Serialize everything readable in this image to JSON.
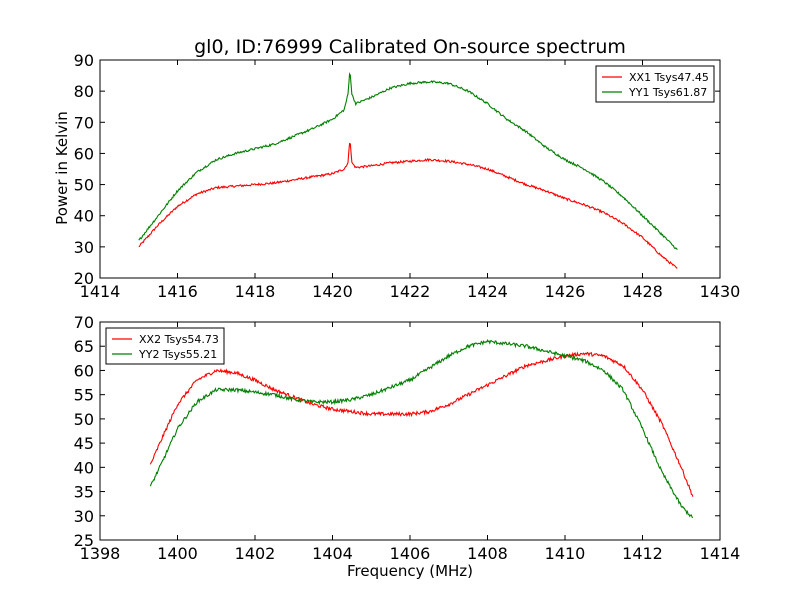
{
  "figure": {
    "title": "gl0, ID:76999 Calibrated On-source spectrum",
    "ylabel": "Power in Kelvin",
    "xlabel": "Frequency (MHz)"
  },
  "chart_data": [
    {
      "type": "line",
      "xlim": [
        1414,
        1430
      ],
      "ylim": [
        20,
        90
      ],
      "xticks": [
        1414,
        1416,
        1418,
        1420,
        1422,
        1424,
        1426,
        1428,
        1430
      ],
      "yticks": [
        20,
        30,
        40,
        50,
        60,
        70,
        80,
        90
      ],
      "legend_position": "top-right",
      "series": [
        {
          "name": "XX1 Tsys47.45",
          "color": "#ff0000",
          "x": [
            1415.0,
            1415.5,
            1416.0,
            1416.5,
            1417.0,
            1417.5,
            1418.0,
            1418.5,
            1419.0,
            1419.5,
            1420.0,
            1420.3,
            1420.4,
            1420.45,
            1420.5,
            1420.6,
            1421.0,
            1421.5,
            1422.0,
            1422.5,
            1423.0,
            1423.5,
            1424.0,
            1424.5,
            1425.0,
            1425.5,
            1426.0,
            1426.5,
            1427.0,
            1427.5,
            1428.0,
            1428.5,
            1428.9
          ],
          "y": [
            30,
            37,
            43,
            47,
            49,
            49.5,
            50,
            50.5,
            51.5,
            52.5,
            53.5,
            55,
            57,
            65,
            57,
            55.5,
            56,
            57,
            57.5,
            58,
            57.5,
            56.5,
            55,
            52.5,
            50,
            48,
            45.5,
            43.5,
            41,
            37.5,
            33,
            27,
            23
          ]
        },
        {
          "name": "YY1 Tsys61.87",
          "color": "#008000",
          "x": [
            1415.0,
            1415.5,
            1416.0,
            1416.5,
            1417.0,
            1417.5,
            1418.0,
            1418.5,
            1419.0,
            1419.5,
            1420.0,
            1420.3,
            1420.4,
            1420.45,
            1420.5,
            1420.6,
            1421.0,
            1421.5,
            1422.0,
            1422.5,
            1423.0,
            1423.5,
            1424.0,
            1424.5,
            1425.0,
            1425.5,
            1426.0,
            1426.5,
            1427.0,
            1427.5,
            1428.0,
            1428.5,
            1428.9
          ],
          "y": [
            32,
            40,
            48,
            54,
            58,
            60,
            61.5,
            63,
            65.5,
            68,
            71,
            74,
            79,
            87,
            79,
            76,
            78,
            81,
            82.5,
            83,
            82.5,
            80,
            76,
            71,
            67,
            62,
            58,
            55,
            51,
            46,
            40,
            34,
            29
          ]
        }
      ]
    },
    {
      "type": "line",
      "xlim": [
        1398,
        1414
      ],
      "ylim": [
        25,
        70
      ],
      "xticks": [
        1398,
        1400,
        1402,
        1404,
        1406,
        1408,
        1410,
        1412,
        1414
      ],
      "yticks": [
        25,
        30,
        35,
        40,
        45,
        50,
        55,
        60,
        65,
        70
      ],
      "legend_position": "top-left",
      "series": [
        {
          "name": "XX2 Tsys54.73",
          "color": "#ff0000",
          "x": [
            1399.3,
            1399.6,
            1400.0,
            1400.5,
            1401.0,
            1401.5,
            1402.0,
            1402.5,
            1403.0,
            1403.5,
            1404.0,
            1404.5,
            1405.0,
            1405.5,
            1406.0,
            1406.5,
            1407.0,
            1407.5,
            1408.0,
            1408.5,
            1409.0,
            1409.5,
            1410.0,
            1410.5,
            1411.0,
            1411.5,
            1412.0,
            1412.5,
            1413.0,
            1413.3
          ],
          "y": [
            40.5,
            46,
            53,
            58,
            60,
            59.5,
            58,
            56,
            54.5,
            53,
            52,
            51.5,
            51,
            51,
            51,
            51.5,
            53,
            55,
            57,
            59,
            61,
            62,
            63,
            63.5,
            63,
            61,
            56,
            49,
            40,
            34
          ]
        },
        {
          "name": "YY2 Tsys55.21",
          "color": "#008000",
          "x": [
            1399.3,
            1399.6,
            1400.0,
            1400.5,
            1401.0,
            1401.5,
            1402.0,
            1402.5,
            1403.0,
            1403.5,
            1404.0,
            1404.5,
            1405.0,
            1405.5,
            1406.0,
            1406.5,
            1407.0,
            1407.5,
            1408.0,
            1408.5,
            1409.0,
            1409.5,
            1410.0,
            1410.5,
            1411.0,
            1411.5,
            1412.0,
            1412.5,
            1413.0,
            1413.3
          ],
          "y": [
            36,
            41,
            48,
            53.5,
            56,
            56,
            55.5,
            55,
            54,
            53.5,
            53.5,
            54,
            55,
            56.5,
            58,
            60.5,
            63,
            65,
            66,
            65.5,
            65,
            64,
            63,
            62,
            60,
            56,
            48,
            39,
            32,
            29.5
          ]
        }
      ]
    }
  ]
}
